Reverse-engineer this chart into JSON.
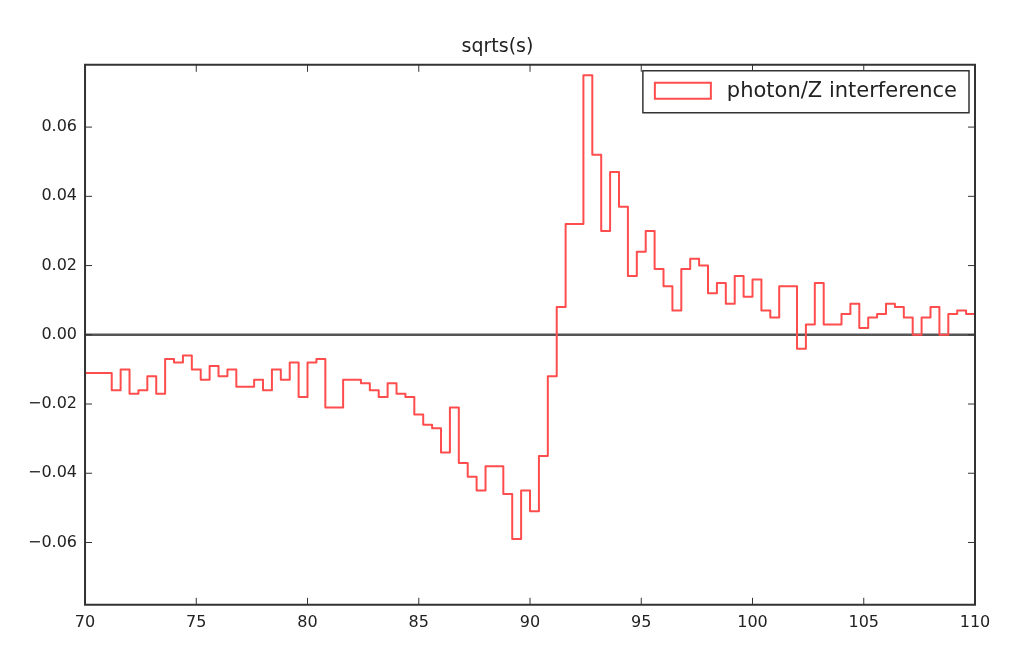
{
  "chart_data": {
    "type": "histogram",
    "title": "sqrts(s)",
    "bins": [
      70,
      70.4,
      70.8,
      71.2,
      71.6,
      72,
      72.4,
      72.8,
      73.2,
      73.6,
      74,
      74.4,
      74.8,
      75.2,
      75.6,
      76,
      76.4,
      76.8,
      77.2,
      77.6,
      78,
      78.4,
      78.8,
      79.2,
      79.6,
      80,
      80.4,
      80.8,
      81.2,
      81.6,
      82,
      82.4,
      82.8,
      83.2,
      83.6,
      84,
      84.4,
      84.8,
      85.2,
      85.6,
      86,
      86.4,
      86.8,
      87.2,
      87.6,
      88,
      88.4,
      88.8,
      89.2,
      89.6,
      90,
      90.4,
      90.8,
      91.2,
      91.6,
      92,
      92.4,
      92.8,
      93.2,
      93.6,
      94,
      94.4,
      94.8,
      95.2,
      95.6,
      96,
      96.4,
      96.8,
      97.2,
      97.6,
      98,
      98.4,
      98.8,
      99.2,
      99.6,
      100,
      100.4,
      100.8,
      101.2,
      101.6,
      102,
      102.4,
      102.8,
      103.2,
      103.6,
      104,
      104.4,
      104.8,
      105.2,
      105.6,
      106,
      106.4,
      106.8,
      107.2,
      107.6,
      108,
      108.4,
      108.8,
      109.2,
      109.6,
      110
    ],
    "series": [
      {
        "name": "photon/Z interference",
        "color": "#ff4d4d",
        "values": [
          -0.011,
          -0.011,
          -0.011,
          -0.016,
          -0.01,
          -0.017,
          -0.016,
          -0.012,
          -0.017,
          -0.007,
          -0.008,
          -0.006,
          -0.01,
          -0.013,
          -0.009,
          -0.012,
          -0.01,
          -0.015,
          -0.015,
          -0.013,
          -0.016,
          -0.01,
          -0.013,
          -0.008,
          -0.018,
          -0.008,
          -0.007,
          -0.021,
          -0.021,
          -0.013,
          -0.013,
          -0.014,
          -0.016,
          -0.018,
          -0.014,
          -0.017,
          -0.018,
          -0.023,
          -0.026,
          -0.027,
          -0.034,
          -0.021,
          -0.037,
          -0.041,
          -0.045,
          -0.038,
          -0.038,
          -0.046,
          -0.059,
          -0.045,
          -0.051,
          -0.035,
          -0.012,
          0.008,
          0.032,
          0.032,
          0.075,
          0.052,
          0.03,
          0.047,
          0.037,
          0.017,
          0.024,
          0.03,
          0.019,
          0.014,
          0.007,
          0.019,
          0.022,
          0.02,
          0.012,
          0.015,
          0.009,
          0.017,
          0.011,
          0.016,
          0.007,
          0.005,
          0.014,
          0.014,
          -0.004,
          0.003,
          0.015,
          0.003,
          0.003,
          0.006,
          0.009,
          0.002,
          0.005,
          0.006,
          0.009,
          0.008,
          0.005,
          0.0,
          0.005,
          0.008,
          0.0,
          0.006,
          0.007,
          0.006
        ]
      }
    ],
    "xlim": [
      70,
      110
    ],
    "xticks": [
      70,
      75,
      80,
      85,
      90,
      95,
      100,
      105,
      110
    ],
    "ylim": [
      -0.078,
      0.078
    ],
    "yticks": [
      {
        "value": -0.06,
        "label": "−0.06"
      },
      {
        "value": -0.04,
        "label": "−0.04"
      },
      {
        "value": -0.02,
        "label": "−0.02"
      },
      {
        "value": 0,
        "label": "0.00"
      },
      {
        "value": 0.02,
        "label": "0.02"
      },
      {
        "value": 0.04,
        "label": "0.04"
      },
      {
        "value": 0.06,
        "label": "0.06"
      }
    ],
    "ref_lines": [
      {
        "axis": "y",
        "value": 0,
        "color": "#555555"
      }
    ],
    "legend": "top right"
  }
}
